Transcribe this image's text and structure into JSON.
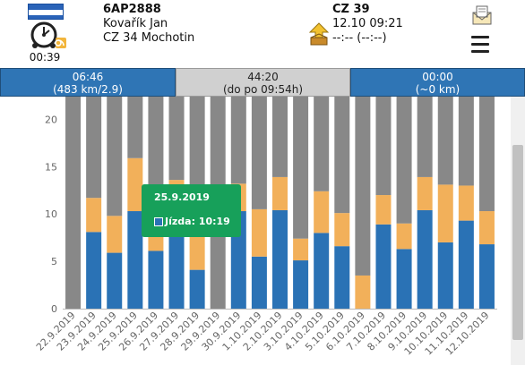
{
  "header": {
    "plate": "6AP2888",
    "driver_name": "Kovařík Jan",
    "location": "CZ 34 Mochotin",
    "tacho_time": "00:39",
    "country_code": "CZ 39",
    "country_time": "12.10 09:21",
    "country_extra": "--:-- (--:--)",
    "icons": {
      "flag": "flag-icon",
      "tacho": "tachograph-icon",
      "load": "load-arrow-icon",
      "mail": "mail-icon",
      "menu": "hamburger-menu-icon"
    }
  },
  "summary": {
    "cells": [
      {
        "line1": "06:46",
        "line2": "(483 km/2.9)"
      },
      {
        "line1": "44:20",
        "line2": "(do po 09:54h)"
      },
      {
        "line1": "00:00",
        "line2": "(~0 km)"
      }
    ]
  },
  "chart_data": {
    "type": "bar",
    "stacked": true,
    "categories": [
      "22.9.2019",
      "23.9.2019",
      "24.9.2019",
      "25.9.2019",
      "26.9.2019",
      "27.9.2019",
      "28.9.2019",
      "29.9.2019",
      "30.9.2019",
      "1.10.2019",
      "2.10.2019",
      "3.10.2019",
      "4.10.2019",
      "5.10.2019",
      "6.10.2019",
      "7.10.2019",
      "8.10.2019",
      "9.10.2019",
      "10.10.2019",
      "11.10.2019",
      "12.10.2019"
    ],
    "series": [
      {
        "color": "#2a72b5",
        "values": [
          0,
          8.1,
          5.9,
          10.3,
          6.1,
          10.3,
          4.1,
          0,
          10.3,
          5.5,
          10.4,
          5.1,
          8.0,
          6.6,
          0,
          8.9,
          6.3,
          10.4,
          7.0,
          9.3,
          6.8
        ]
      },
      {
        "color": "#f2b05a",
        "values": [
          0,
          3.6,
          3.9,
          5.6,
          4.6,
          3.3,
          4.5,
          0,
          2.9,
          5.0,
          3.5,
          2.3,
          4.4,
          3.5,
          3.5,
          3.1,
          2.7,
          3.5,
          6.1,
          3.7,
          3.5
        ]
      },
      {
        "color": "#888888",
        "values": [
          22.4,
          10.7,
          12.6,
          6.5,
          11.7,
          8.8,
          13.8,
          22.4,
          9.2,
          11.9,
          8.5,
          15.0,
          10.0,
          12.3,
          18.9,
          10.4,
          13.4,
          8.5,
          9.3,
          9.4,
          12.1
        ]
      }
    ],
    "ylim": [
      0,
      22.4
    ],
    "yticks": [
      "0",
      "5",
      "10",
      "15",
      "20"
    ],
    "ytick_values": [
      0,
      5,
      10,
      15,
      20
    ],
    "grid": false,
    "tooltip": {
      "date": "25.9.2019",
      "label": "Jízda: 10:19"
    }
  }
}
